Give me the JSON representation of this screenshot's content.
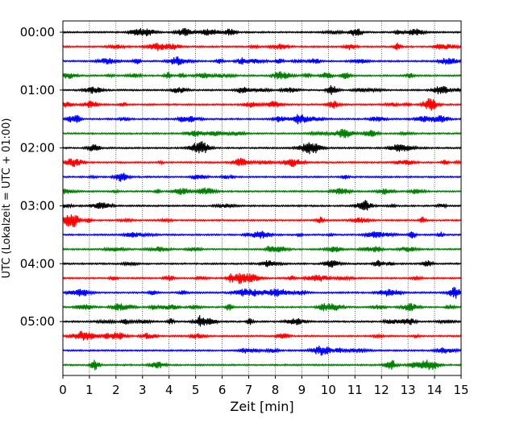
{
  "chart_data": {
    "type": "line",
    "title": "",
    "xlabel": "Zeit  [min]",
    "ylabel": "UTC (Lokalzeit = UTC + 01:00)",
    "xlim": [
      0,
      15
    ],
    "x_ticks": [
      "0",
      "1",
      "2",
      "3",
      "4",
      "5",
      "6",
      "7",
      "8",
      "9",
      "10",
      "11",
      "12",
      "13",
      "14",
      "15"
    ],
    "y_ticks": [
      "00:00",
      "01:00",
      "02:00",
      "03:00",
      "04:00",
      "05:00"
    ],
    "grid": "vertical dotted at each minute",
    "trace_interval_min": 15,
    "trace_color_cycle": [
      "#000000",
      "#ff0000",
      "#0000ff",
      "#008000"
    ],
    "series": [
      {
        "start": "00:00",
        "color": "#000000"
      },
      {
        "start": "00:15",
        "color": "#ff0000"
      },
      {
        "start": "00:30",
        "color": "#0000ff"
      },
      {
        "start": "00:45",
        "color": "#008000"
      },
      {
        "start": "01:00",
        "color": "#000000"
      },
      {
        "start": "01:15",
        "color": "#ff0000"
      },
      {
        "start": "01:30",
        "color": "#0000ff"
      },
      {
        "start": "01:45",
        "color": "#008000"
      },
      {
        "start": "02:00",
        "color": "#000000"
      },
      {
        "start": "02:15",
        "color": "#ff0000"
      },
      {
        "start": "02:30",
        "color": "#0000ff"
      },
      {
        "start": "02:45",
        "color": "#008000"
      },
      {
        "start": "03:00",
        "color": "#000000"
      },
      {
        "start": "03:15",
        "color": "#ff0000"
      },
      {
        "start": "03:30",
        "color": "#0000ff"
      },
      {
        "start": "03:45",
        "color": "#008000"
      },
      {
        "start": "04:00",
        "color": "#000000"
      },
      {
        "start": "04:15",
        "color": "#ff0000"
      },
      {
        "start": "04:30",
        "color": "#0000ff"
      },
      {
        "start": "04:45",
        "color": "#008000"
      },
      {
        "start": "05:00",
        "color": "#000000"
      },
      {
        "start": "05:15",
        "color": "#ff0000"
      },
      {
        "start": "05:30",
        "color": "#0000ff"
      },
      {
        "start": "05:45",
        "color": "#008000"
      }
    ]
  }
}
